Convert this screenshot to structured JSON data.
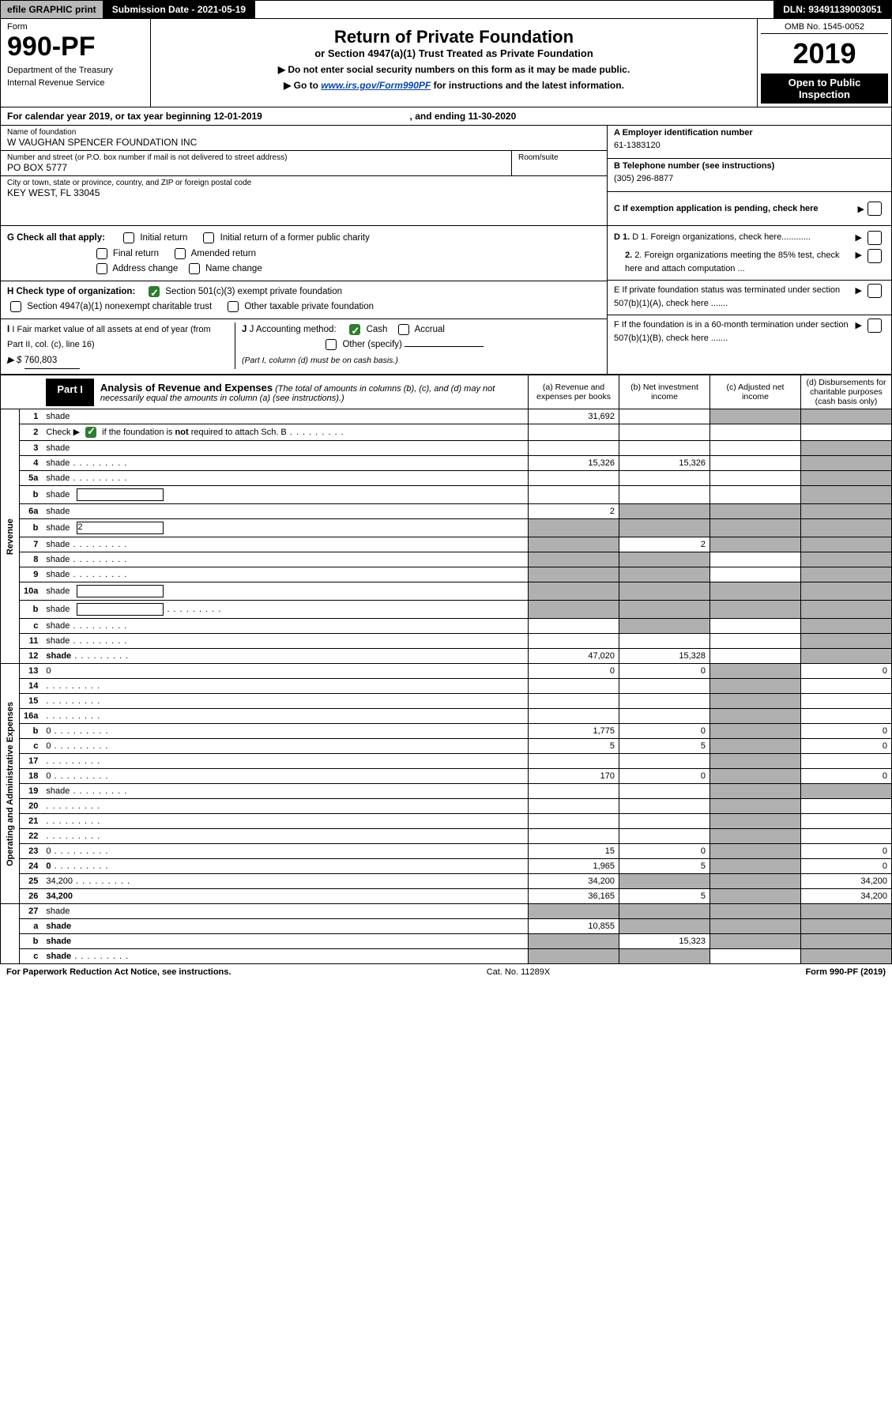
{
  "top_bar": {
    "efile": "efile GRAPHIC print",
    "submission": "Submission Date - 2021-05-19",
    "dln": "DLN: 93491139003051"
  },
  "header": {
    "form_word": "Form",
    "form_number": "990-PF",
    "dept1": "Department of the Treasury",
    "dept2": "Internal Revenue Service",
    "title": "Return of Private Foundation",
    "subtitle": "or Section 4947(a)(1) Trust Treated as Private Foundation",
    "note1": "▶ Do not enter social security numbers on this form as it may be made public.",
    "note2_pre": "▶ Go to ",
    "note2_link": "www.irs.gov/Form990PF",
    "note2_post": " for instructions and the latest information.",
    "omb": "OMB No. 1545-0052",
    "year": "2019",
    "open_public": "Open to Public Inspection"
  },
  "cal_year": {
    "prefix": "For calendar year 2019, or tax year beginning ",
    "begin": "12-01-2019",
    "mid": ", and ending ",
    "end": "11-30-2020"
  },
  "ident": {
    "name_label": "Name of foundation",
    "name": "W VAUGHAN SPENCER FOUNDATION INC",
    "addr_label": "Number and street (or P.O. box number if mail is not delivered to street address)",
    "addr": "PO BOX 5777",
    "room_label": "Room/suite",
    "city_label": "City or town, state or province, country, and ZIP or foreign postal code",
    "city": "KEY WEST, FL  33045",
    "a_label": "A Employer identification number",
    "a_val": "61-1383120",
    "b_label": "B Telephone number (see instructions)",
    "b_val": "(305) 296-8877",
    "c_label": "C If exemption application is pending, check here"
  },
  "checks": {
    "g_label": "G Check all that apply:",
    "g_opts": [
      "Initial return",
      "Initial return of a former public charity",
      "Final return",
      "Amended return",
      "Address change",
      "Name change"
    ],
    "h_label": "H Check type of organization:",
    "h_opt1": "Section 501(c)(3) exempt private foundation",
    "h_opt2": "Section 4947(a)(1) nonexempt charitable trust",
    "h_opt3": "Other taxable private foundation",
    "i_label": "I Fair market value of all assets at end of year (from Part II, col. (c), line 16)",
    "i_prefix": "▶ $",
    "i_val": "760,803",
    "j_label": "J Accounting method:",
    "j_cash": "Cash",
    "j_accrual": "Accrual",
    "j_other": "Other (specify)",
    "j_note": "(Part I, column (d) must be on cash basis.)",
    "d1": "D 1. Foreign organizations, check here............",
    "d2": "2. Foreign organizations meeting the 85% test, check here and attach computation ...",
    "e": "E  If private foundation status was terminated under section 507(b)(1)(A), check here .......",
    "f": "F  If the foundation is in a 60-month termination under section 507(b)(1)(B), check here .......",
    "arrow": "▶"
  },
  "part1": {
    "label": "Part I",
    "title": "Analysis of Revenue and Expenses",
    "note": " (The total of amounts in columns (b), (c), and (d) may not necessarily equal the amounts in column (a) (see instructions).)",
    "col_a": "(a)   Revenue and expenses per books",
    "col_b": "(b)   Net investment income",
    "col_c": "(c)   Adjusted net income",
    "col_d": "(d)  Disbursements for charitable purposes (cash basis only)"
  },
  "side_labels": {
    "revenue": "Revenue",
    "expenses": "Operating and Administrative Expenses"
  },
  "rows": [
    {
      "n": "1",
      "d": "shade",
      "a": "31,692",
      "b": "",
      "c": "shade"
    },
    {
      "n": "2",
      "d": "",
      "dots": true,
      "a": "",
      "b": "",
      "c": "",
      "noborder": true
    },
    {
      "n": "3",
      "d": "shade",
      "a": "",
      "b": "",
      "c": ""
    },
    {
      "n": "4",
      "d": "shade",
      "dots": true,
      "a": "15,326",
      "b": "15,326",
      "c": ""
    },
    {
      "n": "5a",
      "d": "shade",
      "dots": true,
      "a": "",
      "b": "",
      "c": ""
    },
    {
      "n": "b",
      "d": "shade",
      "inline": true,
      "a": "",
      "b": "",
      "c": ""
    },
    {
      "n": "6a",
      "d": "shade",
      "a": "2",
      "b": "shade",
      "c": "shade"
    },
    {
      "n": "b",
      "d": "shade",
      "inline": true,
      "inlineval": "2",
      "a": "shade",
      "b": "shade",
      "c": "shade"
    },
    {
      "n": "7",
      "d": "shade",
      "dots": true,
      "a": "shade",
      "b": "2",
      "c": "shade"
    },
    {
      "n": "8",
      "d": "shade",
      "dots": true,
      "a": "shade",
      "b": "shade",
      "c": ""
    },
    {
      "n": "9",
      "d": "shade",
      "dots": true,
      "a": "shade",
      "b": "shade",
      "c": ""
    },
    {
      "n": "10a",
      "d": "shade",
      "inline": true,
      "a": "shade",
      "b": "shade",
      "c": "shade"
    },
    {
      "n": "b",
      "d": "shade",
      "dots": true,
      "inline": true,
      "a": "shade",
      "b": "shade",
      "c": "shade"
    },
    {
      "n": "c",
      "d": "shade",
      "dots": true,
      "a": "",
      "b": "shade",
      "c": ""
    },
    {
      "n": "11",
      "d": "shade",
      "dots": true,
      "a": "",
      "b": "",
      "c": ""
    },
    {
      "n": "12",
      "d": "shade",
      "dots": true,
      "bold": true,
      "a": "47,020",
      "b": "15,328",
      "c": ""
    },
    {
      "n": "13",
      "d": "0",
      "a": "0",
      "b": "0",
      "c": "shade"
    },
    {
      "n": "14",
      "d": "",
      "dots": true,
      "a": "",
      "b": "",
      "c": "shade"
    },
    {
      "n": "15",
      "d": "",
      "dots": true,
      "a": "",
      "b": "",
      "c": "shade"
    },
    {
      "n": "16a",
      "d": "",
      "dots": true,
      "a": "",
      "b": "",
      "c": "shade"
    },
    {
      "n": "b",
      "d": "0",
      "dots": true,
      "a": "1,775",
      "b": "0",
      "c": "shade"
    },
    {
      "n": "c",
      "d": "0",
      "dots": true,
      "a": "5",
      "b": "5",
      "c": "shade"
    },
    {
      "n": "17",
      "d": "",
      "dots": true,
      "a": "",
      "b": "",
      "c": "shade"
    },
    {
      "n": "18",
      "d": "0",
      "dots": true,
      "a": "170",
      "b": "0",
      "c": "shade"
    },
    {
      "n": "19",
      "d": "shade",
      "dots": true,
      "a": "",
      "b": "",
      "c": "shade"
    },
    {
      "n": "20",
      "d": "",
      "dots": true,
      "a": "",
      "b": "",
      "c": "shade"
    },
    {
      "n": "21",
      "d": "",
      "dots": true,
      "a": "",
      "b": "",
      "c": "shade"
    },
    {
      "n": "22",
      "d": "",
      "dots": true,
      "a": "",
      "b": "",
      "c": "shade"
    },
    {
      "n": "23",
      "d": "0",
      "dots": true,
      "a": "15",
      "b": "0",
      "c": "shade"
    },
    {
      "n": "24",
      "d": "0",
      "dots": true,
      "bold": true,
      "a": "1,965",
      "b": "5",
      "c": "shade"
    },
    {
      "n": "25",
      "d": "34,200",
      "dots": true,
      "a": "34,200",
      "b": "shade",
      "c": "shade"
    },
    {
      "n": "26",
      "d": "34,200",
      "bold": true,
      "a": "36,165",
      "b": "5",
      "c": "shade"
    },
    {
      "n": "27",
      "d": "shade",
      "a": "shade",
      "b": "shade",
      "c": "shade"
    },
    {
      "n": "a",
      "d": "shade",
      "bold": true,
      "a": "10,855",
      "b": "shade",
      "c": "shade"
    },
    {
      "n": "b",
      "d": "shade",
      "bold": true,
      "a": "shade",
      "b": "15,323",
      "c": "shade"
    },
    {
      "n": "c",
      "d": "shade",
      "dots": true,
      "bold": true,
      "a": "shade",
      "b": "shade",
      "c": ""
    }
  ],
  "footer": {
    "left": "For Paperwork Reduction Act Notice, see instructions.",
    "mid": "Cat. No. 11289X",
    "right": "Form 990-PF (2019)"
  },
  "colors": {
    "shade": "#b0b0b0",
    "link": "#0645ad",
    "check_green": "#2e7d32"
  }
}
